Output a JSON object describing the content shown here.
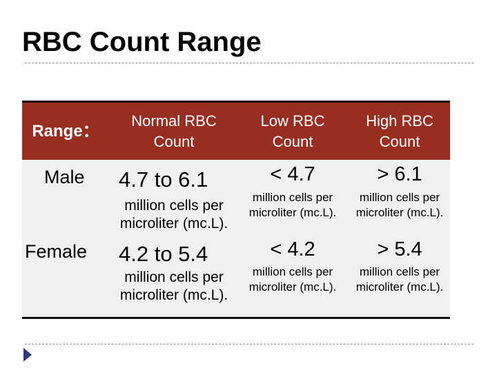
{
  "title": "RBC Count Range",
  "header": {
    "col0": "Range：",
    "col1_l1": "Normal RBC",
    "col1_l2": "Count",
    "col2_l1": "Low RBC",
    "col2_l2": "Count",
    "col3_l1": "High RBC",
    "col3_l2": "Count"
  },
  "rows": [
    {
      "label": "Male",
      "normal": "4.7 to 6.1",
      "low": "< 4.7",
      "high": "> 6.1"
    },
    {
      "label": "Female",
      "normal": "4.2 to 5.4",
      "low": "< 4.2",
      "high": "> 5.4"
    }
  ],
  "unit_l1": "million cells per",
  "unit_l2": "microliter (mc.L).",
  "colors": {
    "header_bg": "#982e21",
    "body_bg": "#f0f0f0",
    "bullet": "#2a3a7a"
  },
  "icons": {
    "bullet": "triangle-bullet-icon"
  }
}
